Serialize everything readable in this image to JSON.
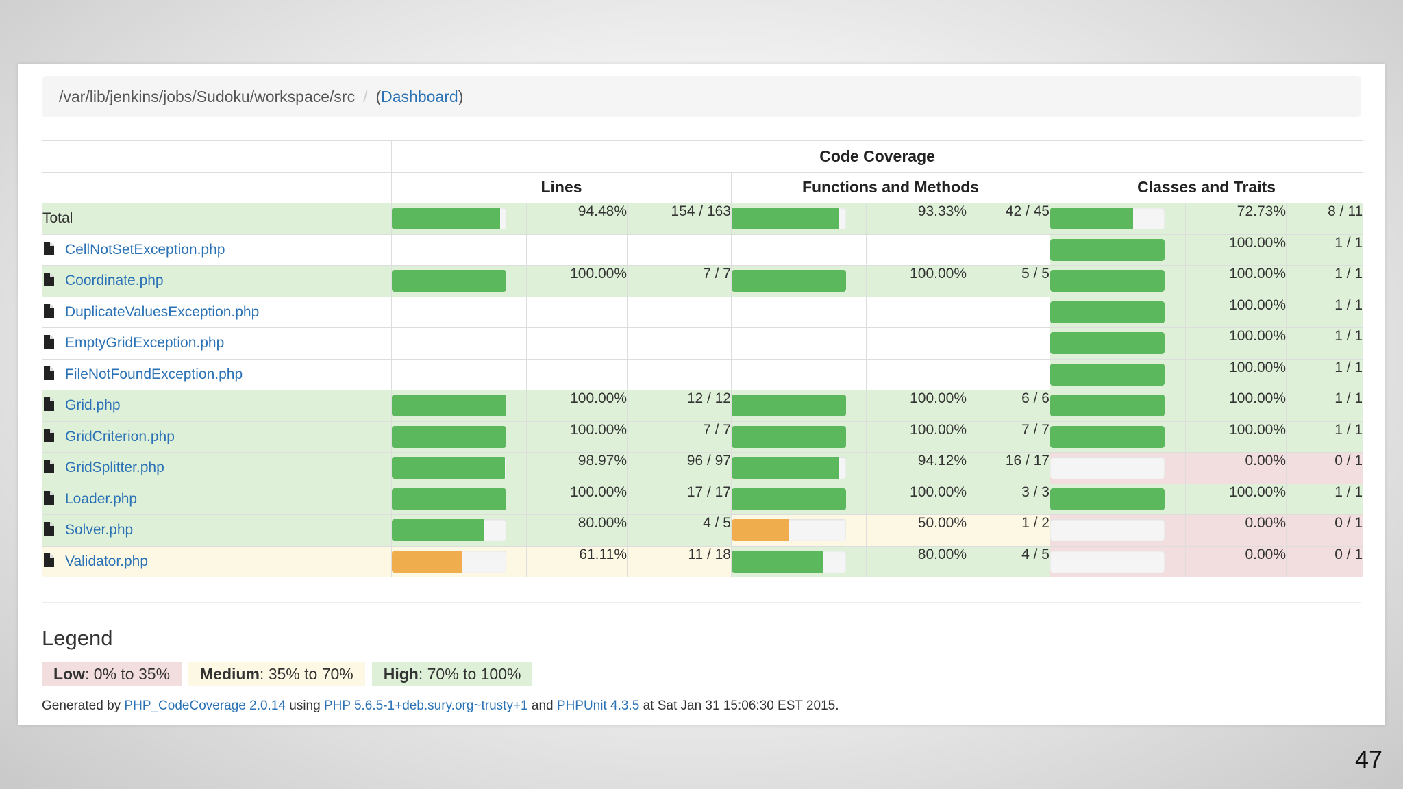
{
  "breadcrumb": {
    "path": "/var/lib/jenkins/jobs/Sudoku/workspace/src",
    "separator": "/",
    "open_paren": "(",
    "dashboard_link": "Dashboard",
    "close_paren": ")"
  },
  "table": {
    "header_main": "Code Coverage",
    "group_headers": [
      "Lines",
      "Functions and Methods",
      "Classes and Traits"
    ],
    "rows": [
      {
        "name": "Total",
        "is_file": false,
        "lines": {
          "level": "hi",
          "percent": "94.48%",
          "ratio": "154 / 163",
          "fill": 94.48
        },
        "functions": {
          "level": "hi",
          "percent": "93.33%",
          "ratio": "42 / 45",
          "fill": 93.33
        },
        "classes": {
          "level": "hi",
          "percent": "72.73%",
          "ratio": "8 / 11",
          "fill": 72.73
        }
      },
      {
        "name": "CellNotSetException.php",
        "is_file": true,
        "lines": null,
        "functions": null,
        "classes": {
          "level": "hi",
          "percent": "100.00%",
          "ratio": "1 / 1",
          "fill": 100
        }
      },
      {
        "name": "Coordinate.php",
        "is_file": true,
        "lines": {
          "level": "hi",
          "percent": "100.00%",
          "ratio": "7 / 7",
          "fill": 100
        },
        "functions": {
          "level": "hi",
          "percent": "100.00%",
          "ratio": "5 / 5",
          "fill": 100
        },
        "classes": {
          "level": "hi",
          "percent": "100.00%",
          "ratio": "1 / 1",
          "fill": 100
        }
      },
      {
        "name": "DuplicateValuesException.php",
        "is_file": true,
        "lines": null,
        "functions": null,
        "classes": {
          "level": "hi",
          "percent": "100.00%",
          "ratio": "1 / 1",
          "fill": 100
        }
      },
      {
        "name": "EmptyGridException.php",
        "is_file": true,
        "lines": null,
        "functions": null,
        "classes": {
          "level": "hi",
          "percent": "100.00%",
          "ratio": "1 / 1",
          "fill": 100
        }
      },
      {
        "name": "FileNotFoundException.php",
        "is_file": true,
        "lines": null,
        "functions": null,
        "classes": {
          "level": "hi",
          "percent": "100.00%",
          "ratio": "1 / 1",
          "fill": 100
        }
      },
      {
        "name": "Grid.php",
        "is_file": true,
        "lines": {
          "level": "hi",
          "percent": "100.00%",
          "ratio": "12 / 12",
          "fill": 100
        },
        "functions": {
          "level": "hi",
          "percent": "100.00%",
          "ratio": "6 / 6",
          "fill": 100
        },
        "classes": {
          "level": "hi",
          "percent": "100.00%",
          "ratio": "1 / 1",
          "fill": 100
        }
      },
      {
        "name": "GridCriterion.php",
        "is_file": true,
        "lines": {
          "level": "hi",
          "percent": "100.00%",
          "ratio": "7 / 7",
          "fill": 100
        },
        "functions": {
          "level": "hi",
          "percent": "100.00%",
          "ratio": "7 / 7",
          "fill": 100
        },
        "classes": {
          "level": "hi",
          "percent": "100.00%",
          "ratio": "1 / 1",
          "fill": 100
        }
      },
      {
        "name": "GridSplitter.php",
        "is_file": true,
        "lines": {
          "level": "hi",
          "percent": "98.97%",
          "ratio": "96 / 97",
          "fill": 98.97
        },
        "functions": {
          "level": "hi",
          "percent": "94.12%",
          "ratio": "16 / 17",
          "fill": 94.12
        },
        "classes": {
          "level": "lo",
          "percent": "0.00%",
          "ratio": "0 / 1",
          "fill": 0
        }
      },
      {
        "name": "Loader.php",
        "is_file": true,
        "lines": {
          "level": "hi",
          "percent": "100.00%",
          "ratio": "17 / 17",
          "fill": 100
        },
        "functions": {
          "level": "hi",
          "percent": "100.00%",
          "ratio": "3 / 3",
          "fill": 100
        },
        "classes": {
          "level": "hi",
          "percent": "100.00%",
          "ratio": "1 / 1",
          "fill": 100
        }
      },
      {
        "name": "Solver.php",
        "is_file": true,
        "lines": {
          "level": "hi",
          "percent": "80.00%",
          "ratio": "4 / 5",
          "fill": 80
        },
        "functions": {
          "level": "med",
          "percent": "50.00%",
          "ratio": "1 / 2",
          "fill": 50
        },
        "classes": {
          "level": "lo",
          "percent": "0.00%",
          "ratio": "0 / 1",
          "fill": 0
        }
      },
      {
        "name": "Validator.php",
        "is_file": true,
        "lines": {
          "level": "med",
          "percent": "61.11%",
          "ratio": "11 / 18",
          "fill": 61.11
        },
        "functions": {
          "level": "hi",
          "percent": "80.00%",
          "ratio": "4 / 5",
          "fill": 80
        },
        "classes": {
          "level": "lo",
          "percent": "0.00%",
          "ratio": "0 / 1",
          "fill": 0
        }
      }
    ]
  },
  "legend": {
    "title": "Legend",
    "low_label": "Low",
    "low_range": ": 0% to 35%",
    "medium_label": "Medium",
    "medium_range": ": 35% to 70%",
    "high_label": "High",
    "high_range": ": 70% to 100%"
  },
  "footer": {
    "generated_by": "Generated by ",
    "tool_link": "PHP_CodeCoverage 2.0.14",
    "using": " using ",
    "php_link": "PHP 5.6.5-1+deb.sury.org~trusty+1",
    "and": " and ",
    "phpunit_link": "PHPUnit 4.3.5",
    "at": " at Sat Jan 31 15:06:30 EST 2015."
  },
  "colors": {
    "high_bg": "#dff0d8",
    "medium_bg": "#fcf8e3",
    "low_bg": "#f2dede",
    "high_bar": "#5cb85c",
    "medium_bar": "#f0ad4e",
    "low_bar": "#d9534f",
    "link": "#2a72b5"
  },
  "slide_number": "47"
}
